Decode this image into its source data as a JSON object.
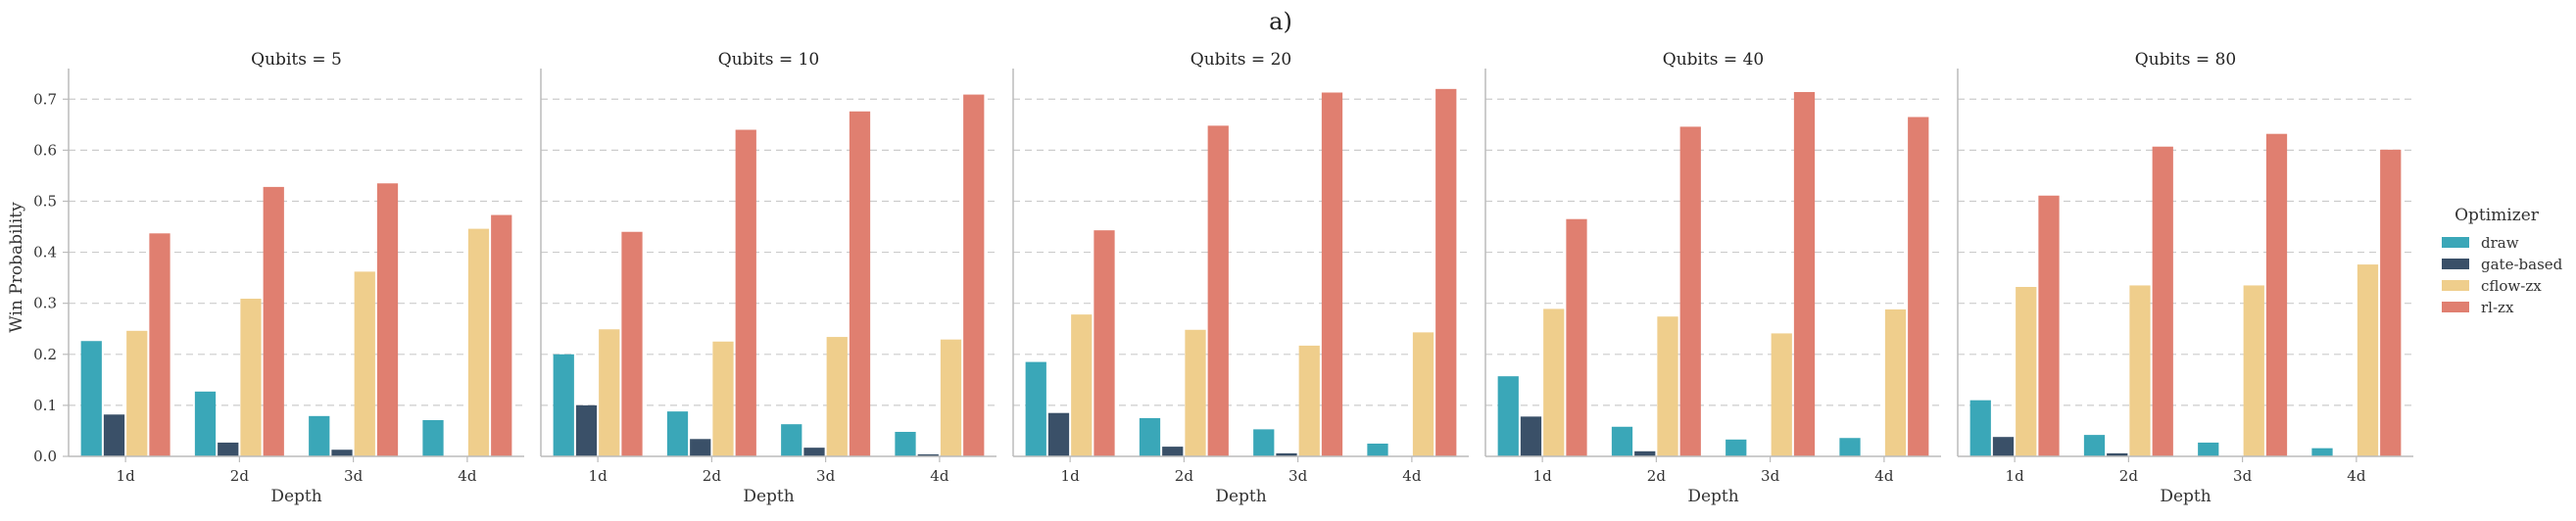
{
  "suptitle": "a)",
  "chart_data": {
    "type": "bar",
    "facet_label": "Qubits",
    "panels": [
      {
        "title": "Qubits = 5",
        "categories": [
          "1d",
          "2d",
          "3d",
          "4d"
        ],
        "series": [
          {
            "name": "draw",
            "values": [
              0.226,
              0.127,
              0.079,
              0.071
            ]
          },
          {
            "name": "gate-based",
            "values": [
              0.082,
              0.027,
              0.013,
              0.0
            ]
          },
          {
            "name": "cflow-zx",
            "values": [
              0.246,
              0.309,
              0.362,
              0.446
            ]
          },
          {
            "name": "rl-zx",
            "values": [
              0.437,
              0.528,
              0.535,
              0.473
            ]
          }
        ]
      },
      {
        "title": "Qubits = 10",
        "categories": [
          "1d",
          "2d",
          "3d",
          "4d"
        ],
        "series": [
          {
            "name": "draw",
            "values": [
              0.2,
              0.088,
              0.063,
              0.048
            ]
          },
          {
            "name": "gate-based",
            "values": [
              0.1,
              0.034,
              0.017,
              0.004
            ]
          },
          {
            "name": "cflow-zx",
            "values": [
              0.249,
              0.225,
              0.234,
              0.229
            ]
          },
          {
            "name": "rl-zx",
            "values": [
              0.44,
              0.64,
              0.676,
              0.709
            ]
          }
        ]
      },
      {
        "title": "Qubits = 20",
        "categories": [
          "1d",
          "2d",
          "3d",
          "4d"
        ],
        "series": [
          {
            "name": "draw",
            "values": [
              0.185,
              0.075,
              0.053,
              0.025
            ]
          },
          {
            "name": "gate-based",
            "values": [
              0.085,
              0.019,
              0.006,
              0.0
            ]
          },
          {
            "name": "cflow-zx",
            "values": [
              0.278,
              0.248,
              0.217,
              0.243
            ]
          },
          {
            "name": "rl-zx",
            "values": [
              0.443,
              0.648,
              0.713,
              0.72
            ]
          }
        ]
      },
      {
        "title": "Qubits = 40",
        "categories": [
          "1d",
          "2d",
          "3d",
          "4d"
        ],
        "series": [
          {
            "name": "draw",
            "values": [
              0.157,
              0.058,
              0.033,
              0.036
            ]
          },
          {
            "name": "gate-based",
            "values": [
              0.078,
              0.01,
              0.0,
              0.0
            ]
          },
          {
            "name": "cflow-zx",
            "values": [
              0.289,
              0.274,
              0.241,
              0.288
            ]
          },
          {
            "name": "rl-zx",
            "values": [
              0.465,
              0.646,
              0.714,
              0.665
            ]
          }
        ]
      },
      {
        "title": "Qubits = 80",
        "categories": [
          "1d",
          "2d",
          "3d",
          "4d"
        ],
        "series": [
          {
            "name": "draw",
            "values": [
              0.11,
              0.042,
              0.027,
              0.016
            ]
          },
          {
            "name": "gate-based",
            "values": [
              0.038,
              0.006,
              0.0,
              0.0
            ]
          },
          {
            "name": "cflow-zx",
            "values": [
              0.332,
              0.335,
              0.335,
              0.376
            ]
          },
          {
            "name": "rl-zx",
            "values": [
              0.511,
              0.607,
              0.632,
              0.601
            ]
          }
        ]
      }
    ],
    "xlabel": "Depth",
    "ylabel": "Win Probability",
    "ylim": [
      0,
      0.76
    ],
    "yticks": [
      0.0,
      0.1,
      0.2,
      0.3,
      0.4,
      0.5,
      0.6,
      0.7
    ],
    "grid": "y-dashed",
    "legend": {
      "title": "Optimizer",
      "placement": "right",
      "entries": [
        "draw",
        "gate-based",
        "cflow-zx",
        "rl-zx"
      ]
    },
    "colors": {
      "draw": "#3aa7b8",
      "gate-based": "#3a5068",
      "cflow-zx": "#efce8c",
      "rl-zx": "#e07f70"
    }
  }
}
